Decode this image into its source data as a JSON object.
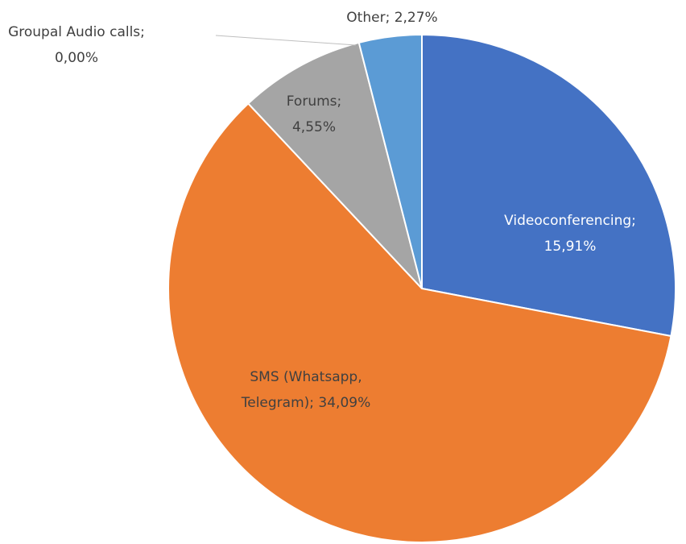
{
  "chart_data": {
    "type": "pie",
    "categories": [
      "Videoconferencing",
      "SMS (Whatsapp, Telegram)",
      "Groupal Audio calls",
      "Forums",
      "Other"
    ],
    "values": [
      15.91,
      34.09,
      0,
      4.55,
      2.27
    ],
    "value_labels": [
      [
        "Videoconferencing;",
        "15,91%"
      ],
      [
        "SMS (Whatsapp,",
        "Telegram); 34,09%"
      ],
      [
        "Groupal Audio calls;",
        "0,00%"
      ],
      [
        "Forums;",
        "4,55%"
      ],
      [
        "Other; 2,27%"
      ]
    ],
    "colors": [
      "#4472c4",
      "#ed7d31",
      "#ffc000",
      "#a5a5a5",
      "#5b9bd5"
    ]
  }
}
